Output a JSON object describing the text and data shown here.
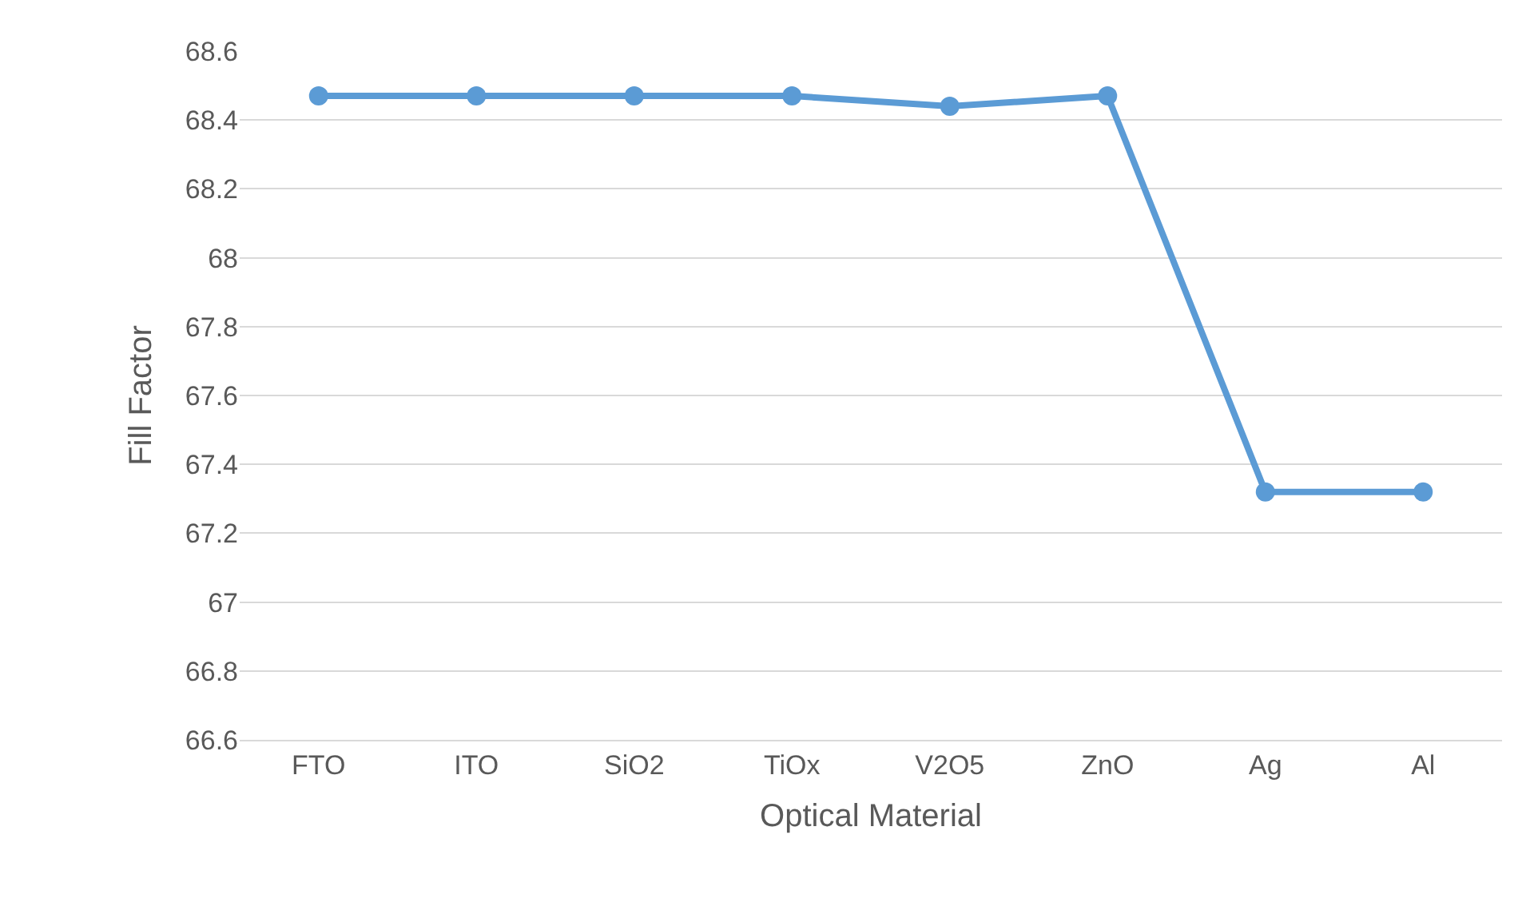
{
  "chart_data": {
    "type": "line",
    "xlabel": "Optical Material",
    "ylabel": "Fill Factor",
    "categories": [
      "FTO",
      "ITO",
      "SiO2",
      "TiOx",
      "V2O5",
      "ZnO",
      "Ag",
      "Al"
    ],
    "series": [
      {
        "color": "#5b9bd5",
        "values": [
          68.47,
          68.47,
          68.47,
          68.47,
          68.44,
          68.47,
          67.32,
          67.32
        ]
      }
    ],
    "ylim": [
      66.6,
      68.6
    ],
    "yticks": [
      66.6,
      66.8,
      67,
      67.2,
      67.4,
      67.6,
      67.8,
      68,
      68.2,
      68.4,
      68.6
    ],
    "grid": "y",
    "marker": "circle",
    "line_style": "solid"
  }
}
